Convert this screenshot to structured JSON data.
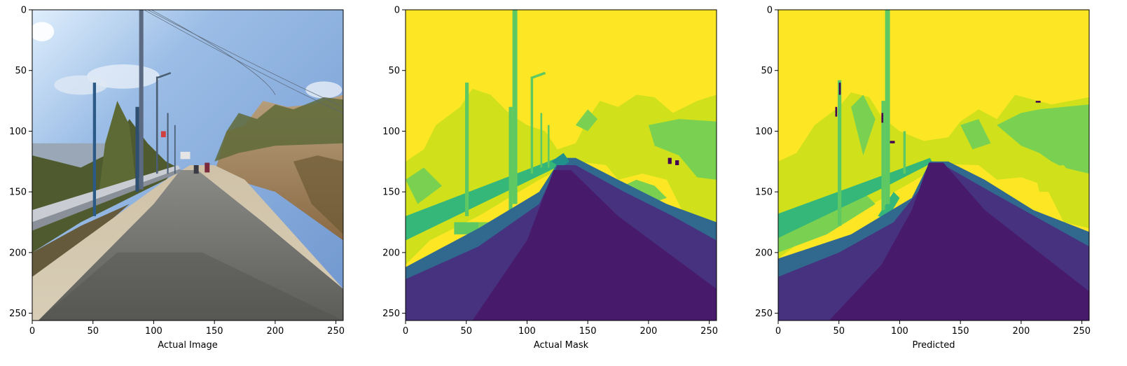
{
  "figure": {
    "background_color": "#ffffff",
    "panels": [
      {
        "id": "actual-image",
        "xlabel": "Actual Image",
        "xticks": [
          0,
          50,
          100,
          150,
          200,
          250
        ],
        "yticks": [
          0,
          50,
          100,
          150,
          200,
          250
        ],
        "extent": [
          0,
          256,
          0,
          256
        ],
        "content": "road-photo"
      },
      {
        "id": "actual-mask",
        "xlabel": "Actual Mask",
        "xticks": [
          0,
          50,
          100,
          150,
          200,
          250
        ],
        "yticks": [
          0,
          50,
          100,
          150,
          200,
          250
        ],
        "extent": [
          0,
          256,
          0,
          256
        ],
        "content": "segmentation-mask"
      },
      {
        "id": "predicted",
        "xlabel": "Predicted",
        "xticks": [
          0,
          50,
          100,
          150,
          200,
          250
        ],
        "yticks": [
          0,
          50,
          100,
          150,
          200,
          250
        ],
        "extent": [
          0,
          256,
          0,
          256
        ],
        "content": "segmentation-prediction"
      }
    ],
    "mask_colors": {
      "sky": "#fde725",
      "vegetation": "#d0e11c",
      "building": "#7ad151",
      "pole": "#5ec962",
      "guardrail": "#35b779",
      "sidewalk": "#31688e",
      "road": "#46327e",
      "road_center": "#481a6c",
      "vehicle": "#21918c",
      "small_object": "#440154"
    }
  }
}
